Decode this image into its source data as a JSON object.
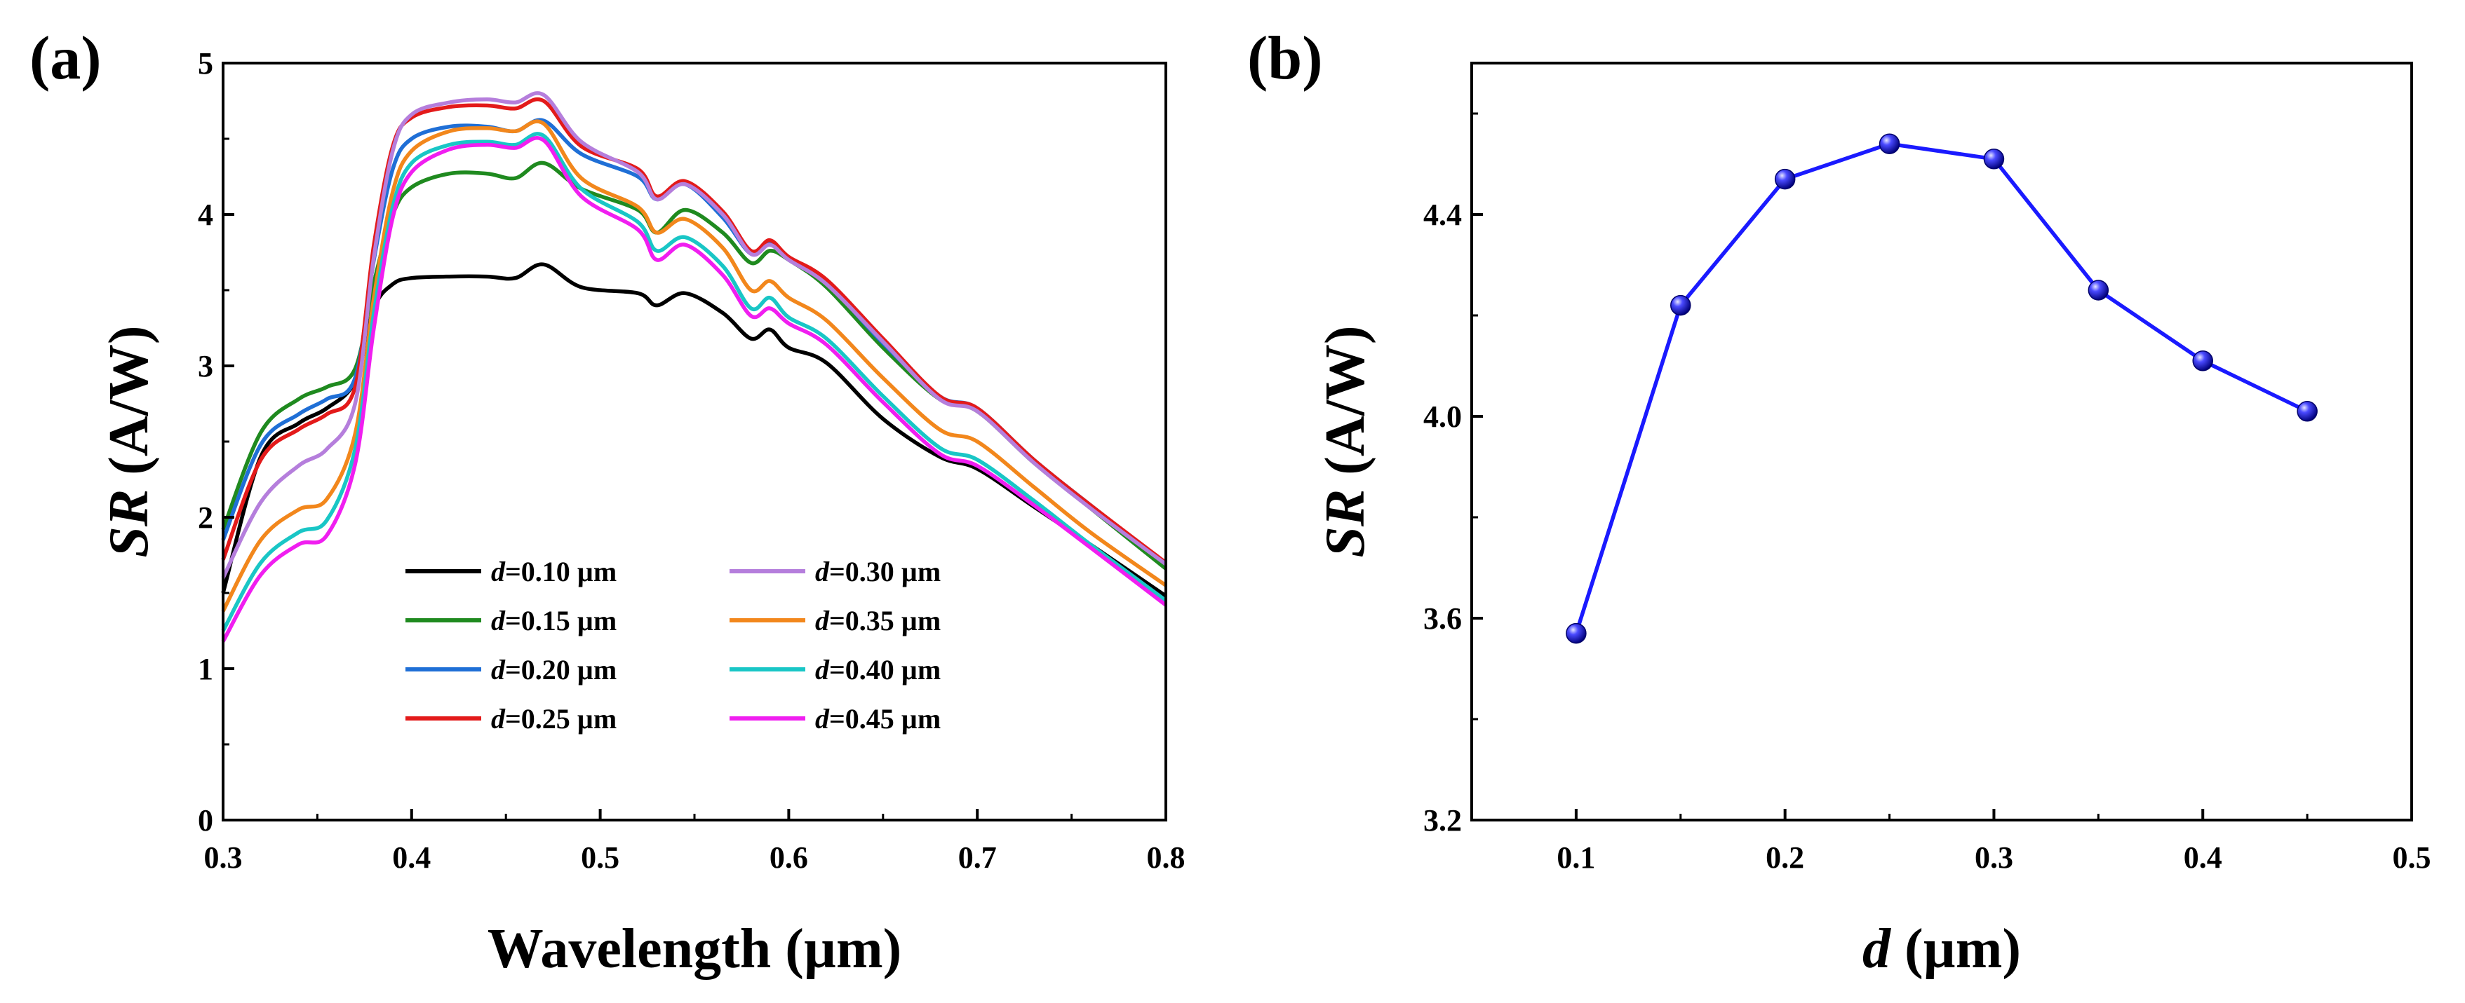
{
  "panels": {
    "a": {
      "label": "(a)"
    },
    "b": {
      "label": "(b)"
    }
  },
  "chart_data": [
    {
      "id": "a",
      "type": "line",
      "title": "",
      "xlabel": {
        "main": "Wavelength ",
        "unit": "(µm)"
      },
      "ylabel": {
        "italic": "SR",
        "rest": " (A/W)"
      },
      "xlim": [
        0.3,
        0.8
      ],
      "ylim": [
        0,
        5
      ],
      "xticks": [
        0.3,
        0.4,
        0.5,
        0.6,
        0.7,
        0.8
      ],
      "xtick_labels": [
        "0.3",
        "0.4",
        "0.5",
        "0.6",
        "0.7",
        "0.8"
      ],
      "yticks": [
        0,
        1,
        2,
        3,
        4,
        5
      ],
      "ytick_labels": [
        "0",
        "1",
        "2",
        "3",
        "4",
        "5"
      ],
      "legend_position": "bottom-center, two columns",
      "x": [
        0.3,
        0.32,
        0.34,
        0.355,
        0.37,
        0.38,
        0.39,
        0.4,
        0.42,
        0.44,
        0.455,
        0.47,
        0.49,
        0.52,
        0.53,
        0.545,
        0.565,
        0.58,
        0.59,
        0.6,
        0.62,
        0.65,
        0.68,
        0.7,
        0.73,
        0.76,
        0.8
      ],
      "series": [
        {
          "name_prefix": "d",
          "name_suffix": "=0.10 µm",
          "color": "#000000",
          "values": [
            1.5,
            2.4,
            2.62,
            2.72,
            2.9,
            3.38,
            3.54,
            3.58,
            3.59,
            3.59,
            3.58,
            3.67,
            3.52,
            3.48,
            3.4,
            3.48,
            3.35,
            3.18,
            3.24,
            3.12,
            3.02,
            2.65,
            2.4,
            2.32,
            2.07,
            1.82,
            1.48
          ]
        },
        {
          "name_prefix": "d",
          "name_suffix": "=0.15 µm",
          "color": "#1f8a1f",
          "values": [
            1.92,
            2.56,
            2.78,
            2.86,
            2.98,
            3.55,
            4.0,
            4.18,
            4.27,
            4.27,
            4.24,
            4.34,
            4.17,
            4.03,
            3.88,
            4.03,
            3.88,
            3.68,
            3.76,
            3.7,
            3.52,
            3.12,
            2.78,
            2.7,
            2.36,
            2.06,
            1.66
          ]
        },
        {
          "name_prefix": "d",
          "name_suffix": "=0.20 µm",
          "color": "#1f6fd6",
          "values": [
            1.85,
            2.48,
            2.68,
            2.78,
            2.92,
            3.7,
            4.3,
            4.5,
            4.58,
            4.58,
            4.55,
            4.62,
            4.4,
            4.25,
            4.1,
            4.2,
            3.98,
            3.74,
            3.81,
            3.7,
            3.55,
            3.15,
            2.8,
            2.72,
            2.38,
            2.08,
            1.69
          ]
        },
        {
          "name_prefix": "d",
          "name_suffix": "=0.25 µm",
          "color": "#e31a1a",
          "values": [
            1.72,
            2.38,
            2.58,
            2.68,
            2.86,
            3.8,
            4.45,
            4.64,
            4.71,
            4.72,
            4.7,
            4.75,
            4.45,
            4.3,
            4.12,
            4.22,
            4.02,
            3.76,
            3.83,
            3.72,
            3.57,
            3.18,
            2.8,
            2.72,
            2.38,
            2.08,
            1.7
          ]
        },
        {
          "name_prefix": "d",
          "name_suffix": "=0.30 µm",
          "color": "#b57edc",
          "values": [
            1.6,
            2.1,
            2.34,
            2.45,
            2.75,
            3.72,
            4.42,
            4.66,
            4.74,
            4.76,
            4.74,
            4.79,
            4.48,
            4.28,
            4.1,
            4.2,
            4.0,
            3.74,
            3.8,
            3.7,
            3.54,
            3.16,
            2.78,
            2.7,
            2.36,
            2.06,
            1.69
          ]
        },
        {
          "name_prefix": "d",
          "name_suffix": "=0.35 µm",
          "color": "#f2871c",
          "values": [
            1.38,
            1.85,
            2.05,
            2.12,
            2.55,
            3.45,
            4.15,
            4.42,
            4.55,
            4.57,
            4.55,
            4.6,
            4.24,
            4.05,
            3.88,
            3.97,
            3.78,
            3.5,
            3.56,
            3.45,
            3.3,
            2.92,
            2.58,
            2.5,
            2.2,
            1.9,
            1.55
          ]
        },
        {
          "name_prefix": "d",
          "name_suffix": "=0.40 µm",
          "color": "#19c6c6",
          "values": [
            1.25,
            1.7,
            1.9,
            1.98,
            2.45,
            3.35,
            4.05,
            4.34,
            4.46,
            4.48,
            4.46,
            4.52,
            4.17,
            3.95,
            3.76,
            3.85,
            3.66,
            3.38,
            3.45,
            3.32,
            3.18,
            2.8,
            2.46,
            2.38,
            2.11,
            1.82,
            1.45
          ]
        },
        {
          "name_prefix": "d",
          "name_suffix": "=0.45 µm",
          "color": "#f01ef0",
          "values": [
            1.18,
            1.62,
            1.82,
            1.88,
            2.35,
            3.25,
            3.98,
            4.28,
            4.43,
            4.46,
            4.44,
            4.49,
            4.12,
            3.9,
            3.7,
            3.8,
            3.6,
            3.33,
            3.38,
            3.28,
            3.14,
            2.76,
            2.42,
            2.34,
            2.08,
            1.8,
            1.42
          ]
        }
      ]
    },
    {
      "id": "b",
      "type": "line",
      "title": "",
      "xlabel": {
        "italic": "d",
        "rest": " (µm)"
      },
      "ylabel": {
        "italic": "SR",
        "rest": " (A/W)"
      },
      "xlim": [
        0.05,
        0.5
      ],
      "ylim": [
        3.2,
        4.7
      ],
      "xticks": [
        0.1,
        0.2,
        0.3,
        0.4,
        0.5
      ],
      "xtick_labels": [
        "0.1",
        "0.2",
        "0.3",
        "0.4",
        "0.5"
      ],
      "yticks": [
        3.2,
        3.6,
        4.0,
        4.4
      ],
      "ytick_labels": [
        "3.2",
        "3.6",
        "4.0",
        "4.4"
      ],
      "color": "#1a1aff",
      "marker": "sphere",
      "x": [
        0.1,
        0.15,
        0.2,
        0.25,
        0.3,
        0.35,
        0.4,
        0.45
      ],
      "y": [
        3.57,
        4.22,
        4.47,
        4.54,
        4.51,
        4.25,
        4.11,
        4.01
      ]
    }
  ]
}
